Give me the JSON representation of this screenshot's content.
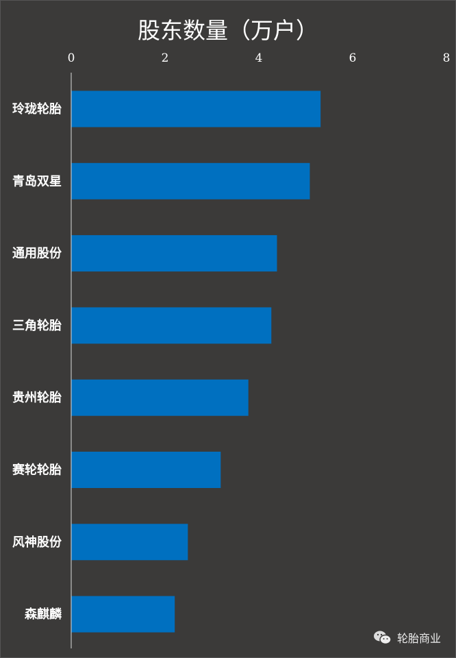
{
  "chart_data": {
    "type": "bar",
    "orientation": "horizontal",
    "title": "股东数量（万户）",
    "categories": [
      "玲珑轮胎",
      "青岛双星",
      "通用股份",
      "三角轮胎",
      "贵州轮胎",
      "赛轮轮胎",
      "风神股份",
      "森麒麟"
    ],
    "values": [
      5.31,
      5.08,
      4.38,
      4.26,
      3.77,
      3.18,
      2.48,
      2.2
    ],
    "xlim": [
      0,
      8
    ],
    "xticks": [
      0,
      2,
      4,
      6,
      8
    ],
    "xaxis_position": "top",
    "grid": false,
    "bar_color": "#0070c0",
    "background": "#3b3a39"
  },
  "watermark": {
    "icon": "wechat-icon",
    "text": "轮胎商业"
  }
}
